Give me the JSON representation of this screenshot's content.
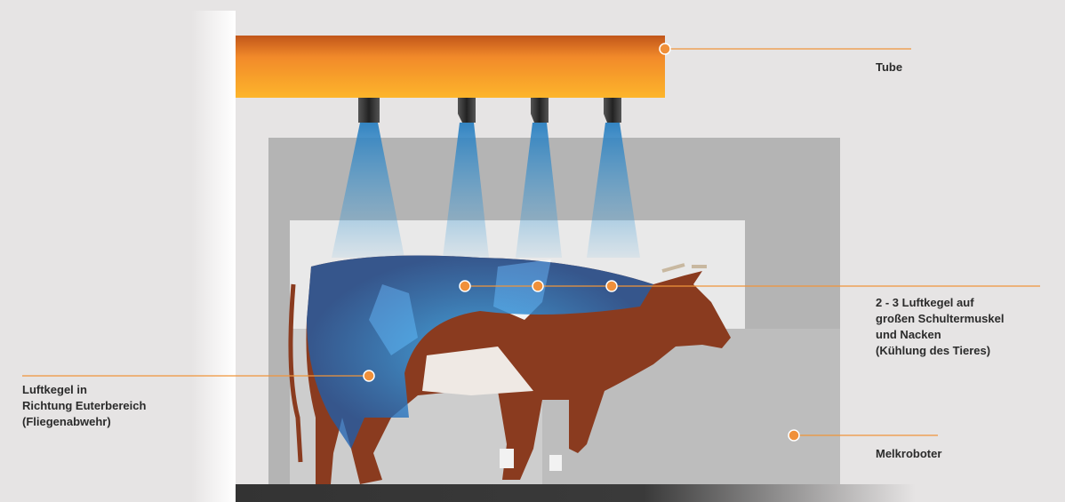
{
  "labels": {
    "tube": "Tube",
    "shoulder": [
      "2 - 3 Luftkegel auf",
      "großen Schultermuskel",
      "und Nacken",
      "(Kühlung des Tieres)"
    ],
    "udder": [
      "Luftkegel in",
      "Richtung Euterbereich",
      "(Fliegenabwehr)"
    ],
    "robot": "Melkroboter"
  }
}
